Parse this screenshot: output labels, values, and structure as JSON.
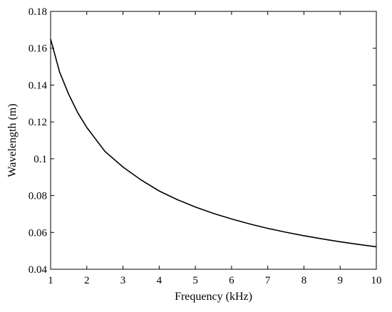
{
  "chart_data": {
    "type": "line",
    "xlabel": "Frequency (kHz)",
    "ylabel": "Wavelength (m)",
    "xlim": [
      1,
      10
    ],
    "ylim": [
      0.04,
      0.18
    ],
    "x_ticks": [
      1,
      2,
      3,
      4,
      5,
      6,
      7,
      8,
      9,
      10
    ],
    "y_ticks": [
      0.04,
      0.06,
      0.08,
      0.1,
      0.12,
      0.14,
      0.16,
      0.18
    ],
    "x_tick_labels": [
      "1",
      "2",
      "3",
      "4",
      "5",
      "6",
      "7",
      "8",
      "9",
      "10"
    ],
    "y_tick_labels": [
      "0.04",
      "0.06",
      "0.08",
      "0.1",
      "0.12",
      "0.14",
      "0.16",
      "0.18"
    ],
    "grid": false,
    "line_color": "#000000",
    "series": [
      {
        "x": [
          1,
          1.25,
          1.5,
          1.75,
          2,
          2.5,
          3,
          3.5,
          4,
          4.5,
          5,
          5.5,
          6,
          6.5,
          7,
          7.5,
          8,
          8.5,
          9,
          9.5,
          10
        ],
        "values": [
          0.165,
          0.147,
          0.135,
          0.125,
          0.117,
          0.104,
          0.0955,
          0.0885,
          0.0825,
          0.0778,
          0.0738,
          0.0703,
          0.0673,
          0.0646,
          0.0622,
          0.0601,
          0.0582,
          0.0565,
          0.0549,
          0.0535,
          0.0522
        ]
      }
    ]
  }
}
